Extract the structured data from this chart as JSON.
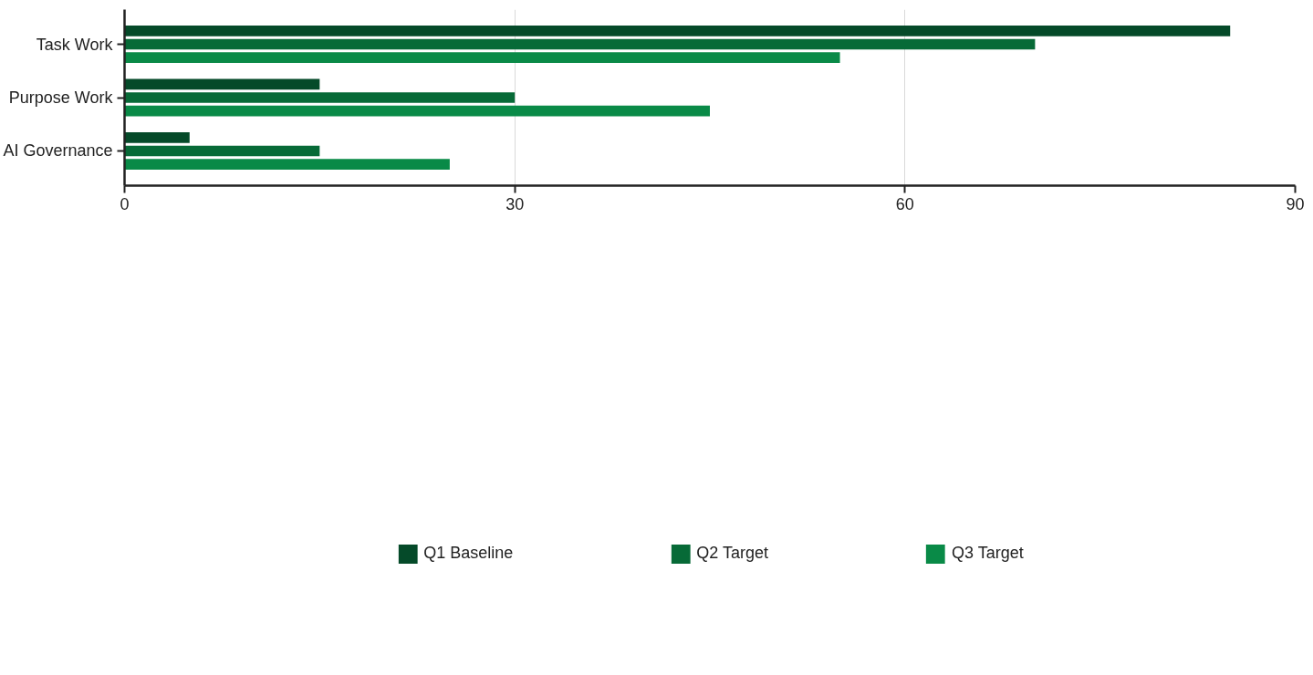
{
  "chart_data": {
    "type": "bar",
    "orientation": "horizontal",
    "categories": [
      "Task Work",
      "Purpose Work",
      "AI Governance"
    ],
    "series": [
      {
        "name": "Q1 Baseline",
        "color": "#054a29",
        "values": [
          85,
          15,
          5
        ]
      },
      {
        "name": "Q2 Target",
        "color": "#076a37",
        "values": [
          70,
          30,
          15
        ]
      },
      {
        "name": "Q3 Target",
        "color": "#098a47",
        "values": [
          55,
          45,
          25
        ]
      }
    ],
    "xlim": [
      0,
      90
    ],
    "xticks": [
      0,
      30,
      60,
      90
    ],
    "grid": "x",
    "legend": "bottom"
  }
}
